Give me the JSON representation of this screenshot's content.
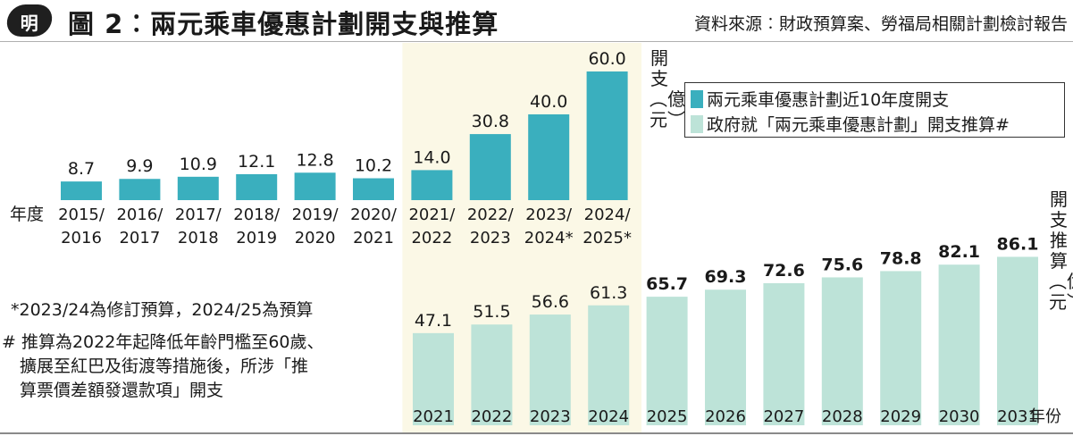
{
  "header": {
    "logo_text": "明",
    "title": "圖 2︰兩元乘車優惠計劃開支與推算",
    "source": "資料來源︰財政預算案、勞福局相關計劃檢討報告"
  },
  "colors": {
    "expenditure_bar": "#3aafbe",
    "projection_bar": "#bde3d8",
    "highlight_band": "#fbf8e6"
  },
  "axis_labels": {
    "top_year_label": "年度",
    "top_unit_label": "開支︵億元︶",
    "bottom_unit_label": "開支推算︵億元︶",
    "bottom_year_label": "年份"
  },
  "notes": {
    "note1": "*2023/24為修訂預算，2024/25為預算",
    "note2_line1": "# 推算為2022年起降低年齡門檻至60歲、",
    "note2_line2": "擴展至紅巴及街渡等措施後，所涉「推",
    "note2_line3": "算票價差額發還款項」開支"
  },
  "chart_data": [
    {
      "type": "bar",
      "series": [
        {
          "name": "兩元乘車優惠計劃近10年度開支",
          "values": [
            8.7,
            9.9,
            10.9,
            12.1,
            12.8,
            10.2,
            14.0,
            30.8,
            40.0,
            60.0
          ]
        }
      ],
      "categories": [
        "2015/\n2016",
        "2016/\n2017",
        "2017/\n2018",
        "2018/\n2019",
        "2019/\n2020",
        "2020/\n2021",
        "2021/\n2022",
        "2022/\n2023",
        "2023/\n2024*",
        "2024/\n2025*"
      ],
      "value_labels": [
        "8.7",
        "9.9",
        "10.9",
        "12.1",
        "12.8",
        "10.2",
        "14.0",
        "30.8",
        "40.0",
        "60.0"
      ],
      "xlabel": "年度",
      "ylabel": "開支（億元）"
    },
    {
      "type": "bar",
      "series": [
        {
          "name": "政府就「兩元乘車優惠計劃」開支推算#",
          "values": [
            47.1,
            51.5,
            56.6,
            61.3,
            65.7,
            69.3,
            72.6,
            75.6,
            78.8,
            82.1,
            86.1
          ]
        }
      ],
      "categories": [
        "2021",
        "2022",
        "2023",
        "2024",
        "2025",
        "2026",
        "2027",
        "2028",
        "2029",
        "2030",
        "2031"
      ],
      "value_labels": [
        "47.1",
        "51.5",
        "56.6",
        "61.3",
        "65.7",
        "69.3",
        "72.6",
        "75.6",
        "78.8",
        "82.1",
        "86.1"
      ],
      "xlabel": "年份",
      "ylabel": "開支推算（億元）"
    }
  ]
}
